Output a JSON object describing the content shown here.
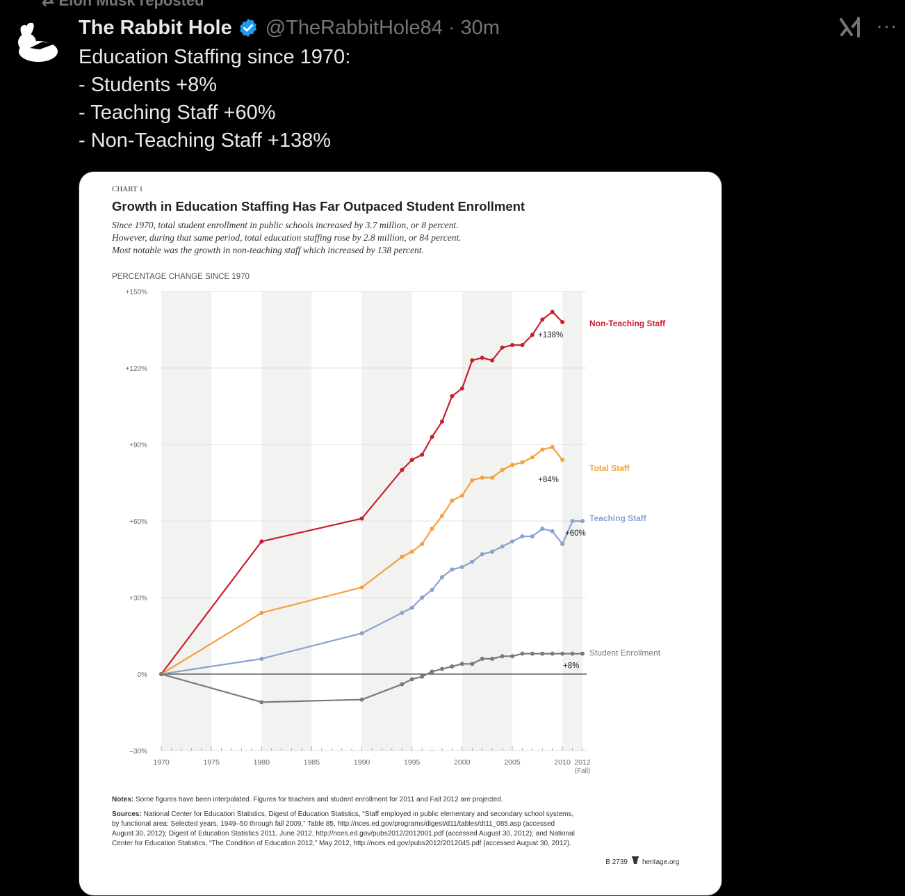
{
  "repost_banner": "Elon Musk reposted",
  "tweet": {
    "display_name": "The Rabbit Hole",
    "handle": "@TheRabbitHole84",
    "separator": "·",
    "time": "30m",
    "more": "···",
    "text_lines": [
      "Education Staffing since 1970:",
      "- Students +8%",
      "- Teaching Staff +60%",
      "- Non-Teaching Staff +138%"
    ]
  },
  "colors": {
    "non_teaching": "#c8202b",
    "total": "#f5a03a",
    "teaching": "#8aa2cf",
    "students": "#7a7a7a",
    "verified": "#1d9bf0"
  },
  "icons": {
    "avatar": "rabbit-icon",
    "verified": "verified-badge-icon",
    "grok": "grok-icon",
    "more": "more-icon",
    "repost": "repost-icon"
  },
  "chart_data": {
    "type": "line",
    "chart_number": "CHART 1",
    "title": "Growth in Education Staffing Has Far Outpaced Student Enrollment",
    "subtitle": [
      "Since 1970, total student enrollment in public schools increased by 3.7 million, or 8 percent.",
      "However, during that same period, total education staffing rose by 2.8 million, or 84 percent.",
      "Most notable was the growth in non-teaching staff which increased by 138 percent."
    ],
    "ylabel": "PERCENTAGE CHANGE SINCE 1970",
    "ylim": [
      -30,
      150
    ],
    "y_ticks": [
      150,
      120,
      90,
      60,
      30,
      0,
      -30
    ],
    "y_tick_labels": [
      "+150%",
      "+120%",
      "+90%",
      "+60%",
      "+30%",
      "0%",
      "–30%"
    ],
    "x_ticks": [
      1970,
      1975,
      1980,
      1985,
      1990,
      1995,
      2000,
      2005,
      2010,
      2012
    ],
    "x_tick_labels": [
      "1970",
      "1975",
      "1980",
      "1985",
      "1990",
      "1995",
      "2000",
      "2005",
      "2010",
      "2012"
    ],
    "x_tick_sublabel": "(Fall)",
    "grid": true,
    "series": [
      {
        "name": "Non-Teaching Staff",
        "end_label": "+138%",
        "x": [
          1970,
          1980,
          1990,
          1994,
          1995,
          1996,
          1997,
          1998,
          1999,
          2000,
          2001,
          2002,
          2003,
          2004,
          2005,
          2006,
          2007,
          2008,
          2009,
          2010
        ],
        "values": [
          0,
          52,
          61,
          80,
          84,
          86,
          93,
          99,
          109,
          112,
          123,
          124,
          123,
          128,
          129,
          129,
          133,
          139,
          142,
          138
        ]
      },
      {
        "name": "Total Staff",
        "end_label": "+84%",
        "x": [
          1970,
          1980,
          1990,
          1994,
          1995,
          1996,
          1997,
          1998,
          1999,
          2000,
          2001,
          2002,
          2003,
          2004,
          2005,
          2006,
          2007,
          2008,
          2009,
          2010
        ],
        "values": [
          0,
          24,
          34,
          46,
          48,
          51,
          57,
          62,
          68,
          70,
          76,
          77,
          77,
          80,
          82,
          83,
          85,
          88,
          89,
          84
        ]
      },
      {
        "name": "Teaching Staff",
        "end_label": "+60%",
        "x": [
          1970,
          1980,
          1990,
          1994,
          1995,
          1996,
          1997,
          1998,
          1999,
          2000,
          2001,
          2002,
          2003,
          2004,
          2005,
          2006,
          2007,
          2008,
          2009,
          2010,
          2011,
          2012
        ],
        "values": [
          0,
          6,
          16,
          24,
          26,
          30,
          33,
          38,
          41,
          42,
          44,
          47,
          48,
          50,
          52,
          54,
          54,
          57,
          56,
          51,
          60,
          60
        ]
      },
      {
        "name": "Student Enrollment",
        "end_label": "+8%",
        "x": [
          1970,
          1980,
          1990,
          1994,
          1995,
          1996,
          1997,
          1998,
          1999,
          2000,
          2001,
          2002,
          2003,
          2004,
          2005,
          2006,
          2007,
          2008,
          2009,
          2010,
          2011,
          2012
        ],
        "values": [
          0,
          -11,
          -10,
          -4,
          -2,
          -1,
          1,
          2,
          3,
          4,
          4,
          6,
          6,
          7,
          7,
          8,
          8,
          8,
          8,
          8,
          8,
          8
        ]
      }
    ],
    "notes_label": "Notes:",
    "notes": "Some figures have been interpolated. Figures for teachers and student enrollment for 2011 and Fall 2012 are projected.",
    "sources_label": "Sources:",
    "sources": [
      "National Center for Education Statistics, Digest of Education Statistics, “Staff employed in public elementary and secondary school systems,",
      "by functional area: Selected years, 1949–50 through fall 2009,” Table 85, http://nces.ed.gov/programs/digest/d11/tables/dt11_085.asp (accessed",
      "August 30, 2012); Digest of Education Statistics 2011, June 2012, http://nces.ed.gov/pubs2012/2012001.pdf (accessed August 30, 2012); and National",
      "Center for Education Statistics, “The Condition of Education 2012,” May 2012, http://nces.ed.gov/pubs2012/2012045.pdf (accessed August 30, 2012)."
    ],
    "footer_code": "B 2739",
    "footer_site": "heritage.org"
  }
}
